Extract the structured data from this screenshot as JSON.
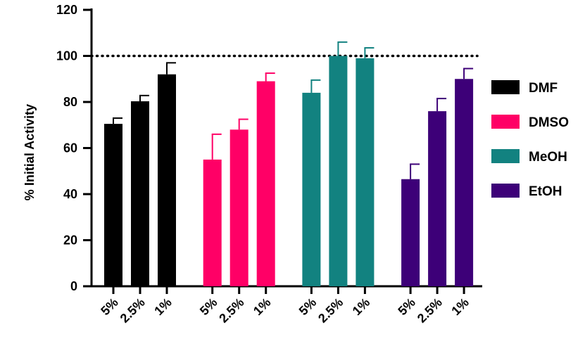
{
  "chart_data": {
    "type": "bar",
    "title": "",
    "xlabel": "",
    "ylabel": "% Initial Activity",
    "ylim": [
      0,
      120
    ],
    "yticks": [
      0,
      20,
      40,
      60,
      80,
      100,
      120
    ],
    "categories": [
      "5%",
      "2.5%",
      "1%"
    ],
    "reference_line": {
      "y": 100,
      "style": "dotted"
    },
    "legend_position": "right",
    "error_bars": "upper",
    "series": [
      {
        "name": "DMF",
        "color": "#000000",
        "values": [
          70.5,
          80.3,
          92.0
        ],
        "errors": [
          2.5,
          2.5,
          5.0
        ]
      },
      {
        "name": "DMSO",
        "color": "#ff0066",
        "values": [
          55.0,
          68.0,
          89.0
        ],
        "errors": [
          11.0,
          4.5,
          3.5
        ]
      },
      {
        "name": "MeOH",
        "color": "#128280",
        "values": [
          84.0,
          100.0,
          99.0
        ],
        "errors": [
          5.5,
          6.0,
          4.5
        ]
      },
      {
        "name": "EtOH",
        "color": "#3d0078",
        "values": [
          46.5,
          76.0,
          90.0
        ],
        "errors": [
          6.5,
          5.5,
          4.5
        ]
      }
    ]
  }
}
